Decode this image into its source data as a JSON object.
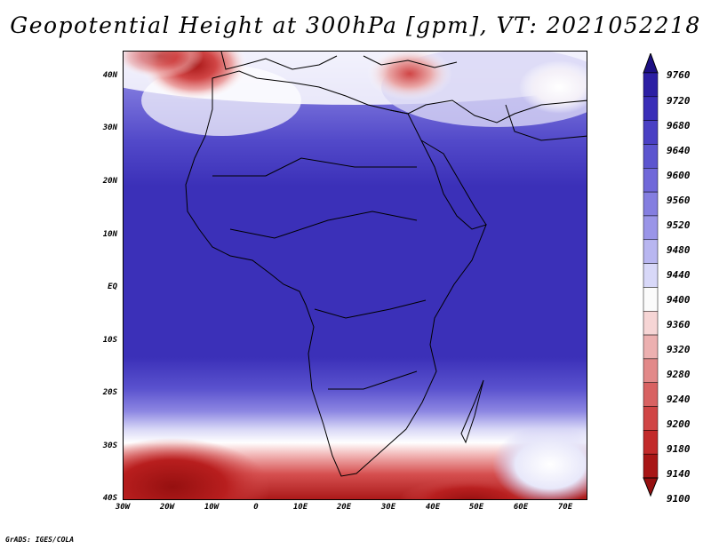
{
  "title": "Geopotential Height at 300hPa [gpm], VT: 2021052218",
  "credit": "GrADS: IGES/COLA",
  "map": {
    "lat_labels": [
      "40N",
      "30N",
      "20N",
      "10N",
      "EQ",
      "10S",
      "20S",
      "30S",
      "40S"
    ],
    "lon_labels": [
      "30W",
      "20W",
      "10W",
      "0",
      "10E",
      "20E",
      "30E",
      "40E",
      "50E",
      "60E",
      "70E"
    ],
    "region": "Africa and surrounding oceans"
  },
  "colorbar": {
    "levels": [
      "9760",
      "9720",
      "9680",
      "9640",
      "9600",
      "9560",
      "9520",
      "9480",
      "9440",
      "9400",
      "9360",
      "9320",
      "9280",
      "9240",
      "9200",
      "9180",
      "9140",
      "9100"
    ],
    "colors": [
      "#1d1083",
      "#2c1fa4",
      "#3a2eb8",
      "#4a40c4",
      "#5c55cf",
      "#7068d9",
      "#847ee0",
      "#9a95e8",
      "#b8b6f0",
      "#d8d8f8",
      "#fbfbfb",
      "#f6d5d5",
      "#ecb0b0",
      "#e28989",
      "#d86262",
      "#d04545",
      "#c22a2a",
      "#a81616",
      "#961010"
    ]
  }
}
